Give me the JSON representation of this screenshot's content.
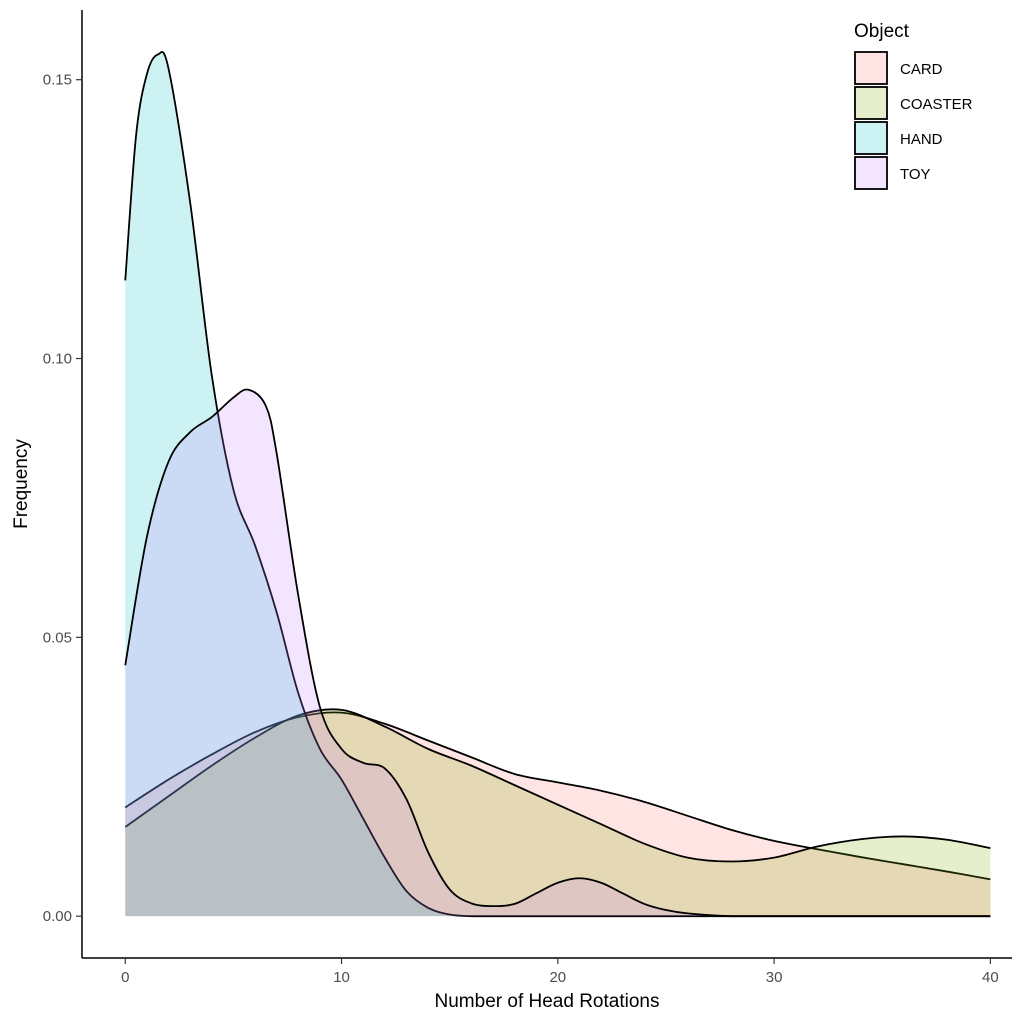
{
  "chart_data": {
    "type": "area",
    "subtype": "density",
    "title": "",
    "xlabel": "Number of Head Rotations",
    "ylabel": "Frequency",
    "xlim": [
      -2,
      41
    ],
    "ylim": [
      -0.0075,
      0.1625
    ],
    "x_ticks": [
      0,
      10,
      20,
      30,
      40
    ],
    "y_ticks": [
      0.0,
      0.05,
      0.1,
      0.15
    ],
    "x_tick_labels": [
      "0",
      "10",
      "20",
      "30",
      "40"
    ],
    "y_tick_labels": [
      "0.00",
      "0.05",
      "0.10",
      "0.15"
    ],
    "grid": false,
    "legend": {
      "title": "Object",
      "position": "top-right"
    },
    "fill_opacity": 0.2,
    "series": [
      {
        "name": "CARD",
        "color": "#F8766D",
        "x": [
          0,
          2,
          4,
          6,
          8,
          10,
          12,
          14,
          16,
          18,
          20,
          22,
          24,
          26,
          28,
          30,
          32,
          34,
          36,
          38,
          40
        ],
        "y": [
          0.0195,
          0.0245,
          0.029,
          0.033,
          0.0357,
          0.0365,
          0.0345,
          0.0315,
          0.0285,
          0.0255,
          0.024,
          0.0225,
          0.0205,
          0.018,
          0.0155,
          0.0135,
          0.012,
          0.0106,
          0.0093,
          0.008,
          0.0066
        ]
      },
      {
        "name": "COASTER",
        "color": "#7CAE00",
        "x": [
          0,
          2,
          4,
          6,
          8,
          10,
          12,
          14,
          16,
          18,
          20,
          22,
          24,
          26,
          28,
          30,
          32,
          34,
          36,
          38,
          40
        ],
        "y": [
          0.016,
          0.0215,
          0.027,
          0.032,
          0.036,
          0.037,
          0.034,
          0.03,
          0.027,
          0.0235,
          0.02,
          0.0165,
          0.013,
          0.0105,
          0.0098,
          0.0105,
          0.0125,
          0.0138,
          0.0143,
          0.0137,
          0.0122
        ]
      },
      {
        "name": "HAND",
        "color": "#00BFC4",
        "x": [
          0,
          0.5,
          1,
          1.5,
          2,
          3,
          4,
          5,
          6,
          7,
          8,
          9,
          10,
          11,
          12,
          13,
          14,
          15,
          16,
          18,
          20,
          25,
          30,
          35,
          40
        ],
        "y": [
          0.114,
          0.14,
          0.151,
          0.1545,
          0.152,
          0.128,
          0.097,
          0.0765,
          0.0665,
          0.0545,
          0.04,
          0.03,
          0.0245,
          0.0175,
          0.0105,
          0.0045,
          0.0015,
          0.0003,
          0.0,
          0.0,
          0.0,
          0.0,
          0.0,
          0.0,
          0.0
        ]
      },
      {
        "name": "TOY",
        "color": "#C77CFF",
        "x": [
          0,
          1,
          2,
          3,
          4,
          5,
          5.7,
          6.5,
          7,
          8,
          9,
          10,
          11,
          12,
          13,
          14,
          15,
          16,
          17,
          18,
          19,
          20,
          21,
          22,
          23,
          24,
          25,
          26,
          28,
          30,
          35,
          40
        ],
        "y": [
          0.045,
          0.068,
          0.0815,
          0.0868,
          0.0895,
          0.093,
          0.0944,
          0.0915,
          0.083,
          0.0575,
          0.0375,
          0.03,
          0.0275,
          0.0265,
          0.021,
          0.0115,
          0.0048,
          0.0023,
          0.0018,
          0.0022,
          0.0041,
          0.006,
          0.0068,
          0.006,
          0.0041,
          0.0022,
          0.0011,
          0.0005,
          0.0,
          0.0,
          0.0,
          0.0
        ]
      }
    ]
  }
}
